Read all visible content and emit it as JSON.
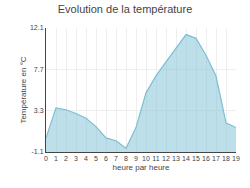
{
  "chart_data": {
    "type": "area",
    "title": "Evolution de la température",
    "x_label": "heure par heure",
    "y_label": "Température en °C",
    "x": [
      0,
      1,
      2,
      3,
      4,
      5,
      6,
      7,
      8,
      9,
      10,
      11,
      12,
      13,
      14,
      15,
      16,
      17,
      18,
      19
    ],
    "values": [
      0.4,
      3.6,
      3.4,
      3.0,
      2.5,
      1.6,
      0.4,
      0.1,
      -0.7,
      1.5,
      5.2,
      7.0,
      8.5,
      10.0,
      11.4,
      11.0,
      9.2,
      7.0,
      2.0,
      1.5
    ],
    "color": "#7bbfd4",
    "xlim": [
      0,
      19
    ],
    "xticks": [
      0,
      1,
      2,
      3,
      4,
      5,
      6,
      7,
      8,
      9,
      10,
      11,
      12,
      13,
      14,
      15,
      16,
      17,
      18,
      19
    ],
    "ylim": [
      -1.1,
      12.1
    ],
    "yticks": [
      -1.1,
      3.3,
      7.7,
      12.1
    ],
    "grid": true
  }
}
